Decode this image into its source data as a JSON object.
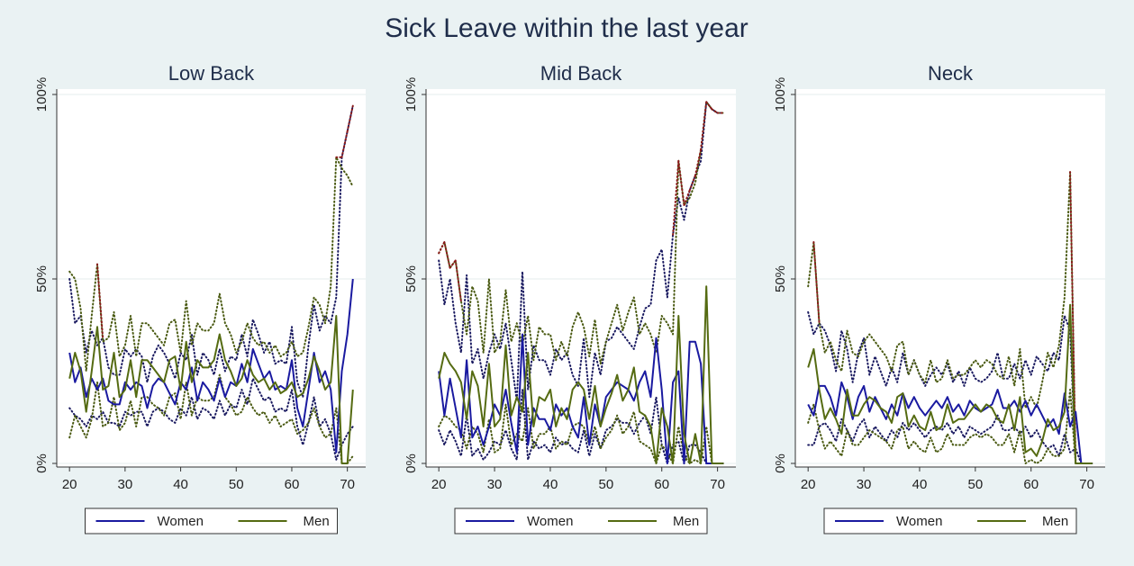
{
  "title": "Sick Leave within the last year",
  "colors": {
    "women": "#1a1aa0",
    "men": "#556b12",
    "ci_women": "#1a1a60",
    "ci_men": "#4a5a12",
    "ci_high": "#8b1a1a",
    "background": "#eaf2f3",
    "plot_bg": "#ffffff"
  },
  "legend": {
    "women": "Women",
    "men": "Men"
  },
  "chart_data": [
    {
      "type": "line",
      "title": "Low Back",
      "xlabel": "",
      "ylabel": "",
      "xlim": [
        19,
        72
      ],
      "ylim": [
        0,
        1
      ],
      "xticks": [
        20,
        30,
        40,
        50,
        60,
        70
      ],
      "yticks": [
        0,
        0.5,
        1
      ],
      "ytick_labels": [
        "0%",
        "50%",
        "100%"
      ],
      "grid": true,
      "legend_position": "bottom",
      "x": [
        20,
        21,
        22,
        23,
        24,
        25,
        26,
        27,
        28,
        29,
        30,
        31,
        32,
        33,
        34,
        35,
        36,
        37,
        38,
        39,
        40,
        41,
        42,
        43,
        44,
        45,
        46,
        47,
        48,
        49,
        50,
        51,
        52,
        53,
        54,
        55,
        56,
        57,
        58,
        59,
        60,
        61,
        62,
        63,
        64,
        65,
        66,
        67,
        68,
        69,
        70,
        71
      ],
      "series": [
        {
          "name": "Women",
          "values": [
            0.3,
            0.22,
            0.26,
            0.18,
            0.23,
            0.2,
            0.23,
            0.17,
            0.16,
            0.16,
            0.22,
            0.2,
            0.22,
            0.21,
            0.15,
            0.21,
            0.23,
            0.22,
            0.19,
            0.16,
            0.22,
            0.2,
            0.26,
            0.17,
            0.22,
            0.2,
            0.17,
            0.23,
            0.18,
            0.22,
            0.21,
            0.27,
            0.22,
            0.31,
            0.27,
            0.23,
            0.25,
            0.2,
            0.21,
            0.2,
            0.28,
            0.15,
            0.1,
            0.2,
            0.3,
            0.22,
            0.25,
            0.2,
            0.03,
            0.25,
            0.35,
            0.5
          ]
        },
        {
          "name": "Men",
          "values": [
            0.23,
            0.3,
            0.25,
            0.14,
            0.25,
            0.37,
            0.2,
            0.21,
            0.3,
            0.18,
            0.2,
            0.28,
            0.18,
            0.28,
            0.28,
            0.26,
            0.24,
            0.22,
            0.28,
            0.29,
            0.2,
            0.33,
            0.22,
            0.28,
            0.26,
            0.26,
            0.28,
            0.35,
            0.28,
            0.25,
            0.21,
            0.23,
            0.28,
            0.24,
            0.22,
            0.23,
            0.2,
            0.22,
            0.19,
            0.2,
            0.22,
            0.18,
            0.19,
            0.23,
            0.29,
            0.25,
            0.2,
            0.22,
            0.4,
            0.0,
            0.0,
            0.2
          ]
        }
      ],
      "ci_women_low": [
        0.15,
        0.13,
        0.12,
        0.1,
        0.13,
        0.12,
        0.14,
        0.11,
        0.11,
        0.1,
        0.14,
        0.13,
        0.14,
        0.14,
        0.1,
        0.14,
        0.15,
        0.14,
        0.12,
        0.11,
        0.15,
        0.13,
        0.18,
        0.12,
        0.15,
        0.14,
        0.12,
        0.17,
        0.13,
        0.16,
        0.15,
        0.2,
        0.16,
        0.23,
        0.2,
        0.17,
        0.18,
        0.14,
        0.15,
        0.14,
        0.2,
        0.1,
        0.05,
        0.11,
        0.18,
        0.1,
        0.12,
        0.08,
        0.01,
        0.05,
        0.08,
        0.1
      ],
      "ci_women_high": [
        0.5,
        0.38,
        0.4,
        0.3,
        0.36,
        0.32,
        0.34,
        0.26,
        0.24,
        0.24,
        0.31,
        0.29,
        0.31,
        0.29,
        0.22,
        0.29,
        0.32,
        0.3,
        0.27,
        0.23,
        0.3,
        0.28,
        0.35,
        0.24,
        0.3,
        0.28,
        0.24,
        0.31,
        0.25,
        0.29,
        0.28,
        0.35,
        0.29,
        0.39,
        0.35,
        0.3,
        0.33,
        0.27,
        0.28,
        0.27,
        0.37,
        0.22,
        0.18,
        0.32,
        0.43,
        0.36,
        0.4,
        0.38,
        0.45,
        0.83,
        0.9,
        0.97
      ],
      "ci_men_low": [
        0.07,
        0.13,
        0.1,
        0.07,
        0.12,
        0.22,
        0.1,
        0.11,
        0.18,
        0.09,
        0.11,
        0.17,
        0.1,
        0.18,
        0.18,
        0.16,
        0.15,
        0.13,
        0.18,
        0.19,
        0.12,
        0.22,
        0.13,
        0.18,
        0.17,
        0.17,
        0.18,
        0.24,
        0.18,
        0.16,
        0.13,
        0.14,
        0.18,
        0.15,
        0.13,
        0.14,
        0.11,
        0.13,
        0.1,
        0.11,
        0.12,
        0.08,
        0.09,
        0.11,
        0.15,
        0.1,
        0.07,
        0.08,
        0.15,
        0.0,
        0.0,
        0.02
      ],
      "ci_men_high": [
        0.52,
        0.5,
        0.42,
        0.25,
        0.4,
        0.54,
        0.33,
        0.34,
        0.41,
        0.29,
        0.32,
        0.4,
        0.29,
        0.38,
        0.38,
        0.36,
        0.34,
        0.32,
        0.38,
        0.39,
        0.3,
        0.44,
        0.32,
        0.38,
        0.36,
        0.36,
        0.38,
        0.46,
        0.38,
        0.35,
        0.3,
        0.33,
        0.38,
        0.34,
        0.32,
        0.33,
        0.3,
        0.32,
        0.29,
        0.3,
        0.33,
        0.29,
        0.3,
        0.37,
        0.45,
        0.43,
        0.38,
        0.48,
        0.83,
        0.8,
        0.78,
        0.75
      ]
    },
    {
      "type": "line",
      "title": "Mid Back",
      "xlabel": "",
      "ylabel": "",
      "xlim": [
        19,
        72
      ],
      "ylim": [
        0,
        1
      ],
      "xticks": [
        20,
        30,
        40,
        50,
        60,
        70
      ],
      "yticks": [
        0,
        0.5,
        1
      ],
      "ytick_labels": [
        "0%",
        "50%",
        "100%"
      ],
      "grid": true,
      "legend_position": "bottom",
      "x": [
        20,
        21,
        22,
        23,
        24,
        25,
        26,
        27,
        28,
        29,
        30,
        31,
        32,
        33,
        34,
        35,
        36,
        37,
        38,
        39,
        40,
        41,
        42,
        43,
        44,
        45,
        46,
        47,
        48,
        49,
        50,
        51,
        52,
        53,
        54,
        55,
        56,
        57,
        58,
        59,
        60,
        61,
        62,
        63,
        64,
        65,
        66,
        67,
        68,
        69,
        70,
        71
      ],
      "series": [
        {
          "name": "Women",
          "values": [
            0.25,
            0.13,
            0.23,
            0.15,
            0.07,
            0.28,
            0.07,
            0.1,
            0.05,
            0.1,
            0.16,
            0.13,
            0.2,
            0.11,
            0.03,
            0.35,
            0.05,
            0.15,
            0.12,
            0.12,
            0.09,
            0.16,
            0.13,
            0.15,
            0.1,
            0.07,
            0.18,
            0.05,
            0.16,
            0.1,
            0.18,
            0.2,
            0.22,
            0.21,
            0.2,
            0.17,
            0.22,
            0.25,
            0.18,
            0.34,
            0.2,
            0.0,
            0.22,
            0.25,
            0.0,
            0.33,
            0.33,
            0.27,
            0.0,
            0.0,
            0.0,
            0.0
          ]
        },
        {
          "name": "Men",
          "values": [
            0.23,
            0.3,
            0.27,
            0.25,
            0.22,
            0.12,
            0.25,
            0.21,
            0.1,
            0.27,
            0.1,
            0.12,
            0.32,
            0.13,
            0.18,
            0.14,
            0.3,
            0.1,
            0.18,
            0.17,
            0.2,
            0.1,
            0.15,
            0.12,
            0.2,
            0.22,
            0.2,
            0.12,
            0.21,
            0.1,
            0.15,
            0.19,
            0.24,
            0.17,
            0.2,
            0.26,
            0.14,
            0.13,
            0.1,
            0.0,
            0.15,
            0.1,
            0.0,
            0.4,
            0.08,
            0.0,
            0.08,
            0.0,
            0.48,
            0.0,
            0.0,
            0.0
          ]
        }
      ],
      "ci_women_low": [
        0.09,
        0.05,
        0.09,
        0.06,
        0.02,
        0.13,
        0.02,
        0.04,
        0.01,
        0.03,
        0.06,
        0.05,
        0.09,
        0.04,
        0.01,
        0.2,
        0.01,
        0.06,
        0.04,
        0.05,
        0.03,
        0.07,
        0.05,
        0.06,
        0.04,
        0.03,
        0.09,
        0.02,
        0.08,
        0.04,
        0.09,
        0.1,
        0.12,
        0.11,
        0.11,
        0.08,
        0.11,
        0.13,
        0.08,
        0.18,
        0.05,
        0.0,
        0.05,
        0.06,
        0.0,
        0.05,
        0.05,
        0.03,
        0.0,
        0.0,
        0.0,
        0.0
      ],
      "ci_women_high": [
        0.55,
        0.43,
        0.5,
        0.38,
        0.3,
        0.51,
        0.27,
        0.31,
        0.23,
        0.3,
        0.35,
        0.31,
        0.38,
        0.28,
        0.17,
        0.52,
        0.2,
        0.32,
        0.28,
        0.28,
        0.24,
        0.31,
        0.28,
        0.3,
        0.24,
        0.21,
        0.34,
        0.18,
        0.3,
        0.24,
        0.33,
        0.34,
        0.37,
        0.35,
        0.33,
        0.31,
        0.37,
        0.42,
        0.43,
        0.55,
        0.58,
        0.45,
        0.62,
        0.72,
        0.66,
        0.74,
        0.78,
        0.82,
        0.98,
        0.96,
        0.95,
        0.95
      ],
      "ci_men_low": [
        0.1,
        0.13,
        0.12,
        0.1,
        0.09,
        0.04,
        0.1,
        0.08,
        0.03,
        0.12,
        0.03,
        0.04,
        0.16,
        0.05,
        0.08,
        0.06,
        0.15,
        0.04,
        0.08,
        0.08,
        0.1,
        0.04,
        0.06,
        0.05,
        0.1,
        0.11,
        0.1,
        0.05,
        0.1,
        0.04,
        0.07,
        0.09,
        0.13,
        0.08,
        0.1,
        0.14,
        0.06,
        0.05,
        0.04,
        0.0,
        0.05,
        0.03,
        0.0,
        0.1,
        0.02,
        0.0,
        0.01,
        0.0,
        0.1,
        0.0,
        0.0,
        0.0
      ],
      "ci_men_high": [
        0.57,
        0.6,
        0.53,
        0.55,
        0.44,
        0.35,
        0.48,
        0.44,
        0.3,
        0.5,
        0.3,
        0.33,
        0.47,
        0.33,
        0.38,
        0.32,
        0.4,
        0.28,
        0.37,
        0.35,
        0.35,
        0.28,
        0.33,
        0.29,
        0.37,
        0.41,
        0.37,
        0.29,
        0.39,
        0.27,
        0.33,
        0.38,
        0.43,
        0.36,
        0.41,
        0.45,
        0.35,
        0.38,
        0.35,
        0.3,
        0.4,
        0.38,
        0.35,
        0.82,
        0.7,
        0.72,
        0.76,
        0.85,
        0.98,
        0.96,
        0.95,
        0.95
      ]
    },
    {
      "type": "line",
      "title": "Neck",
      "xlabel": "",
      "ylabel": "",
      "xlim": [
        19,
        72
      ],
      "ylim": [
        0,
        1
      ],
      "xticks": [
        20,
        30,
        40,
        50,
        60,
        70
      ],
      "yticks": [
        0,
        0.5,
        1
      ],
      "ytick_labels": [
        "0%",
        "50%",
        "100%"
      ],
      "grid": true,
      "legend_position": "bottom",
      "x": [
        20,
        21,
        22,
        23,
        24,
        25,
        26,
        27,
        28,
        29,
        30,
        31,
        32,
        33,
        34,
        35,
        36,
        37,
        38,
        39,
        40,
        41,
        42,
        43,
        44,
        45,
        46,
        47,
        48,
        49,
        50,
        51,
        52,
        53,
        54,
        55,
        56,
        57,
        58,
        59,
        60,
        61,
        62,
        63,
        64,
        65,
        66,
        67,
        68,
        69,
        70,
        71
      ],
      "series": [
        {
          "name": "Women",
          "values": [
            0.16,
            0.13,
            0.21,
            0.21,
            0.18,
            0.13,
            0.22,
            0.18,
            0.12,
            0.18,
            0.21,
            0.14,
            0.18,
            0.15,
            0.12,
            0.16,
            0.13,
            0.19,
            0.15,
            0.18,
            0.15,
            0.13,
            0.15,
            0.17,
            0.15,
            0.18,
            0.14,
            0.16,
            0.13,
            0.17,
            0.15,
            0.14,
            0.15,
            0.16,
            0.2,
            0.15,
            0.15,
            0.17,
            0.14,
            0.17,
            0.13,
            0.16,
            0.13,
            0.1,
            0.12,
            0.08,
            0.19,
            0.1,
            0.14,
            0.0,
            0.0,
            0.0
          ]
        },
        {
          "name": "Men",
          "values": [
            0.26,
            0.31,
            0.2,
            0.12,
            0.15,
            0.12,
            0.08,
            0.2,
            0.13,
            0.13,
            0.16,
            0.18,
            0.17,
            0.15,
            0.14,
            0.11,
            0.18,
            0.19,
            0.1,
            0.13,
            0.1,
            0.09,
            0.14,
            0.09,
            0.1,
            0.16,
            0.11,
            0.12,
            0.12,
            0.14,
            0.16,
            0.14,
            0.16,
            0.15,
            0.12,
            0.11,
            0.16,
            0.09,
            0.18,
            0.03,
            0.04,
            0.02,
            0.06,
            0.12,
            0.09,
            0.1,
            0.14,
            0.43,
            0.0,
            0.0,
            0.0,
            0.0
          ]
        }
      ],
      "ci_women_low": [
        0.05,
        0.05,
        0.1,
        0.11,
        0.09,
        0.06,
        0.12,
        0.09,
        0.06,
        0.1,
        0.12,
        0.07,
        0.1,
        0.08,
        0.06,
        0.09,
        0.07,
        0.11,
        0.09,
        0.11,
        0.09,
        0.07,
        0.09,
        0.1,
        0.09,
        0.11,
        0.08,
        0.1,
        0.07,
        0.1,
        0.09,
        0.08,
        0.09,
        0.1,
        0.13,
        0.09,
        0.09,
        0.1,
        0.08,
        0.1,
        0.07,
        0.09,
        0.06,
        0.04,
        0.05,
        0.02,
        0.08,
        0.03,
        0.04,
        0.0,
        0.0,
        0.0
      ],
      "ci_women_high": [
        0.41,
        0.35,
        0.38,
        0.36,
        0.32,
        0.25,
        0.36,
        0.31,
        0.22,
        0.3,
        0.34,
        0.24,
        0.29,
        0.25,
        0.21,
        0.26,
        0.22,
        0.3,
        0.24,
        0.28,
        0.24,
        0.21,
        0.24,
        0.26,
        0.24,
        0.27,
        0.22,
        0.25,
        0.21,
        0.26,
        0.23,
        0.22,
        0.23,
        0.25,
        0.3,
        0.23,
        0.23,
        0.27,
        0.23,
        0.28,
        0.24,
        0.29,
        0.27,
        0.25,
        0.3,
        0.28,
        0.4,
        0.36,
        0.0,
        0.0,
        0.0,
        0.0
      ],
      "ci_men_low": [
        0.11,
        0.16,
        0.09,
        0.04,
        0.06,
        0.04,
        0.02,
        0.09,
        0.05,
        0.05,
        0.07,
        0.09,
        0.08,
        0.07,
        0.06,
        0.04,
        0.09,
        0.1,
        0.04,
        0.06,
        0.04,
        0.03,
        0.07,
        0.03,
        0.04,
        0.08,
        0.05,
        0.05,
        0.05,
        0.07,
        0.08,
        0.07,
        0.08,
        0.07,
        0.05,
        0.05,
        0.08,
        0.03,
        0.09,
        0.0,
        0.01,
        0.0,
        0.01,
        0.04,
        0.02,
        0.02,
        0.04,
        0.2,
        0.0,
        0.0,
        0.0,
        0.0
      ],
      "ci_men_high": [
        0.48,
        0.6,
        0.38,
        0.3,
        0.33,
        0.28,
        0.25,
        0.36,
        0.3,
        0.29,
        0.33,
        0.35,
        0.33,
        0.31,
        0.29,
        0.25,
        0.32,
        0.33,
        0.24,
        0.28,
        0.24,
        0.22,
        0.28,
        0.22,
        0.23,
        0.28,
        0.23,
        0.24,
        0.24,
        0.26,
        0.28,
        0.26,
        0.28,
        0.27,
        0.24,
        0.23,
        0.29,
        0.21,
        0.31,
        0.15,
        0.18,
        0.15,
        0.22,
        0.3,
        0.26,
        0.32,
        0.45,
        0.79,
        0.0,
        0.0,
        0.0,
        0.0
      ]
    }
  ]
}
